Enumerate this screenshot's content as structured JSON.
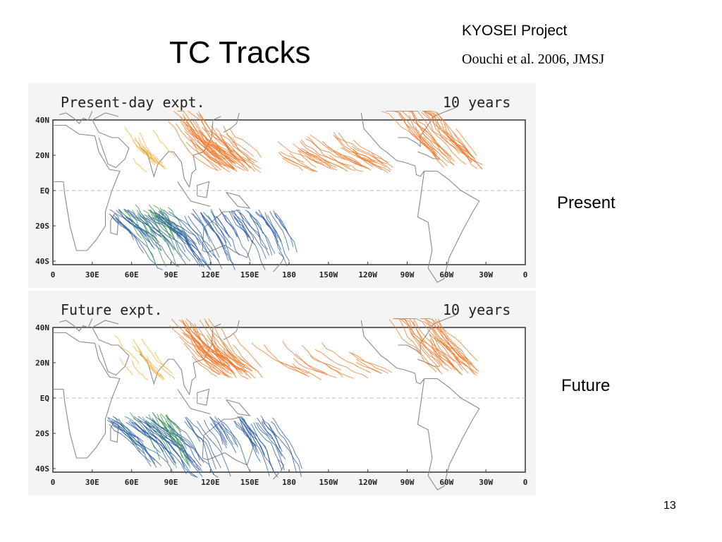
{
  "slide": {
    "title": "TC Tracks",
    "project": "KYOSEI Project",
    "citation": "Oouchi et al. 2006, JMSJ",
    "page_number": "13"
  },
  "labels": {
    "present": "Present",
    "future": "Future"
  },
  "panels": [
    {
      "title": "Present-day expt.",
      "period": "10 years",
      "lat_ticks": [
        "40N",
        "20N",
        "EQ",
        "20S",
        "40S"
      ],
      "lon_ticks": [
        "0",
        "30E",
        "60E",
        "90E",
        "120E",
        "150E",
        "180",
        "150W",
        "120W",
        "90W",
        "60W",
        "30W",
        "0"
      ]
    },
    {
      "title": "Future expt.",
      "period": "10 years",
      "lat_ticks": [
        "40N",
        "20N",
        "EQ",
        "20S",
        "40S"
      ],
      "lon_ticks": [
        "0",
        "30E",
        "60E",
        "90E",
        "120E",
        "150E",
        "180",
        "150W",
        "120W",
        "90W",
        "60W",
        "30W",
        "0"
      ]
    }
  ],
  "colors": {
    "track_orange": "#f07a2c",
    "track_light_orange": "#f5b03a",
    "track_blue": "#2f5fa8",
    "track_green": "#3a9a4a",
    "coastline": "#8a8a8a",
    "frame": "#333333"
  }
}
